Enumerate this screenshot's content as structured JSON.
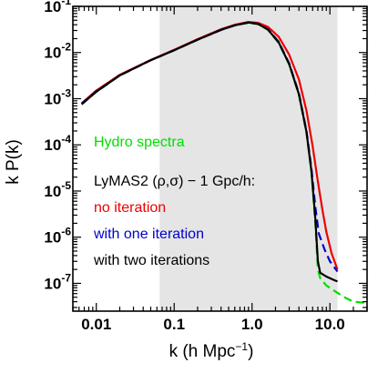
{
  "chart_data": {
    "type": "line",
    "title": "",
    "xlabel": "k (h Mpc",
    "xlabel_sup": "−1",
    "xlabel_close": ")",
    "ylabel": "k P(k)",
    "xscale": "log",
    "yscale": "log",
    "xlim": [
      0.005,
      30
    ],
    "ylim": [
      2.5e-08,
      0.1
    ],
    "x_ticks": [
      {
        "value": 0.01,
        "label": "0.01"
      },
      {
        "value": 0.1,
        "label": "0.1"
      },
      {
        "value": 1,
        "label": "1.0"
      },
      {
        "value": 10,
        "label": "10.0"
      }
    ],
    "y_ticks": [
      {
        "value": 0.1,
        "base": "10",
        "exp": "-1"
      },
      {
        "value": 0.01,
        "base": "10",
        "exp": "-2"
      },
      {
        "value": 0.001,
        "base": "10",
        "exp": "-3"
      },
      {
        "value": 0.0001,
        "base": "10",
        "exp": "-4"
      },
      {
        "value": 1e-05,
        "base": "10",
        "exp": "-5"
      },
      {
        "value": 1e-06,
        "base": "10",
        "exp": "-6"
      },
      {
        "value": 1e-07,
        "base": "10",
        "exp": "-7"
      }
    ],
    "shaded_region": {
      "x": [
        0.065,
        12.5
      ],
      "color": "#e5e5e5"
    },
    "annotations": [
      {
        "text": "Hydro spectra",
        "color": "#00dd00"
      },
      {
        "text": "LyMAS2 (ρ,σ) − 1 Gpc/h:",
        "color": "#000000"
      },
      {
        "text": "no iteration",
        "color": "#ee0000"
      },
      {
        "text": "with one iteration",
        "color": "#0000cc"
      },
      {
        "text": "with two iterations",
        "color": "#000000"
      }
    ],
    "series": [
      {
        "color": "#00dd00",
        "style": "dashed",
        "points": [
          [
            0.0065,
            0.00075
          ],
          [
            0.01,
            0.0014
          ],
          [
            0.02,
            0.0032
          ],
          [
            0.05,
            0.0068
          ],
          [
            0.1,
            0.0112
          ],
          [
            0.2,
            0.019
          ],
          [
            0.4,
            0.031
          ],
          [
            0.6,
            0.039
          ],
          [
            0.9,
            0.044
          ],
          [
            1.2,
            0.041
          ],
          [
            1.6,
            0.031
          ],
          [
            2.2,
            0.016
          ],
          [
            3.0,
            0.0055
          ],
          [
            4.0,
            0.0012
          ],
          [
            5.0,
            0.00018
          ],
          [
            5.8,
            2.5e-05
          ],
          [
            6.5,
            2e-06
          ],
          [
            7.0,
            2e-07
          ],
          [
            7.5,
            1.3e-07
          ],
          [
            9,
            9e-08
          ],
          [
            12,
            6.5e-08
          ],
          [
            16,
            4.8e-08
          ],
          [
            20,
            4e-08
          ],
          [
            28,
            3.8e-08
          ]
        ]
      },
      {
        "color": "#ee0000",
        "style": "solid",
        "points": [
          [
            0.0065,
            0.0008
          ],
          [
            0.01,
            0.0015
          ],
          [
            0.02,
            0.0033
          ],
          [
            0.05,
            0.0069
          ],
          [
            0.1,
            0.0115
          ],
          [
            0.2,
            0.0195
          ],
          [
            0.4,
            0.032
          ],
          [
            0.6,
            0.04
          ],
          [
            0.9,
            0.046
          ],
          [
            1.2,
            0.044
          ],
          [
            1.6,
            0.036
          ],
          [
            2.2,
            0.022
          ],
          [
            3.0,
            0.009
          ],
          [
            4.0,
            0.0026
          ],
          [
            5.0,
            0.00055
          ],
          [
            6.0,
            9.5e-05
          ],
          [
            7.0,
            1.6e-05
          ],
          [
            8.0,
            4e-06
          ],
          [
            9.0,
            1.3e-06
          ],
          [
            10.5,
            4.5e-07
          ],
          [
            12.5,
            2e-07
          ]
        ]
      },
      {
        "color": "#0000cc",
        "style": "dashed",
        "points": [
          [
            0.0065,
            0.00078
          ],
          [
            0.01,
            0.00145
          ],
          [
            0.02,
            0.0032
          ],
          [
            0.05,
            0.0068
          ],
          [
            0.1,
            0.0112
          ],
          [
            0.2,
            0.019
          ],
          [
            0.4,
            0.031
          ],
          [
            0.6,
            0.039
          ],
          [
            0.9,
            0.045
          ],
          [
            1.2,
            0.042
          ],
          [
            1.6,
            0.032
          ],
          [
            2.2,
            0.017
          ],
          [
            3.0,
            0.0058
          ],
          [
            4.0,
            0.0013
          ],
          [
            5.0,
            0.0002
          ],
          [
            5.8,
            3e-05
          ],
          [
            6.5,
            4.5e-06
          ],
          [
            7.2,
            1.2e-06
          ],
          [
            8.5,
            5.5e-07
          ],
          [
            10,
            3e-07
          ],
          [
            12.5,
            1.8e-07
          ]
        ]
      },
      {
        "color": "#000000",
        "style": "solid",
        "points": [
          [
            0.0065,
            0.00076
          ],
          [
            0.01,
            0.00142
          ],
          [
            0.02,
            0.0032
          ],
          [
            0.05,
            0.0068
          ],
          [
            0.1,
            0.0112
          ],
          [
            0.2,
            0.019
          ],
          [
            0.4,
            0.031
          ],
          [
            0.6,
            0.039
          ],
          [
            0.9,
            0.0445
          ],
          [
            1.2,
            0.0415
          ],
          [
            1.6,
            0.0315
          ],
          [
            2.2,
            0.0165
          ],
          [
            3.0,
            0.0056
          ],
          [
            4.0,
            0.00125
          ],
          [
            5.0,
            0.00019
          ],
          [
            5.8,
            2.6e-05
          ],
          [
            6.5,
            2.5e-06
          ],
          [
            7.0,
            3e-07
          ],
          [
            7.5,
            1.7e-07
          ],
          [
            9,
            1.4e-07
          ],
          [
            11,
            1.2e-07
          ],
          [
            12.5,
            1.1e-07
          ]
        ]
      }
    ]
  }
}
